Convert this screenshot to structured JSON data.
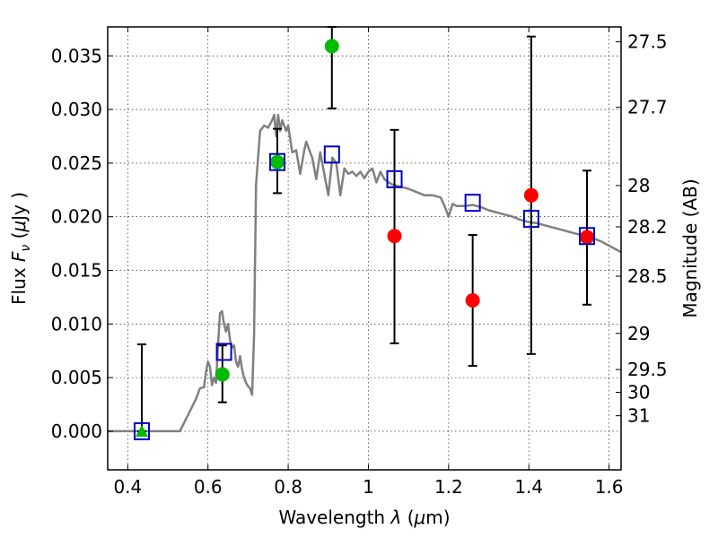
{
  "chart_data": {
    "type": "scatter",
    "xlabel_text": "Wavelength",
    "xlabel_symbol": "λ",
    "xlabel_unit_open": "(",
    "xlabel_unit_mu": "μ",
    "xlabel_unit_rest": "m)",
    "ylabel_text": "Flux",
    "ylabel_symbol": "F",
    "ylabel_subscript": "ν",
    "ylabel_unit_open": "(",
    "ylabel_unit_mu": "μ",
    "ylabel_unit_rest": "Jy )",
    "y2label": "Magnitude (AB)",
    "xlim": [
      0.35,
      1.63
    ],
    "ylim": [
      -0.0036,
      0.0377
    ],
    "grid": true,
    "x_ticks": [
      0.4,
      0.6,
      0.8,
      1.0,
      1.2,
      1.4,
      1.6
    ],
    "x_tick_labels": [
      "0.4",
      "0.6",
      "0.8",
      "1",
      "1.2",
      "1.4",
      "1.6"
    ],
    "y_ticks": [
      0.0,
      0.005,
      0.01,
      0.015,
      0.02,
      0.025,
      0.03,
      0.035
    ],
    "y_tick_labels": [
      "0.000",
      "0.005",
      "0.010",
      "0.015",
      "0.020",
      "0.025",
      "0.030",
      "0.035"
    ],
    "mag_ticks": [
      27.5,
      27.7,
      28,
      28.2,
      28.5,
      29,
      29.5,
      30,
      31
    ],
    "mag_tick_labels": [
      "27.5",
      "27.7",
      "28",
      "28.2",
      "28.5",
      "29",
      "29.5",
      "30",
      "31"
    ],
    "series": [
      {
        "marker": "circle",
        "color": "#00bb00",
        "points": [
          {
            "x": 0.636,
            "y": 0.0053,
            "err_low": 0.0027,
            "err_high": 0.008
          },
          {
            "x": 0.773,
            "y": 0.0251,
            "err_low": 0.0222,
            "err_high": 0.0282
          },
          {
            "x": 0.909,
            "y": 0.0359,
            "err_low": 0.0301,
            "err_high": 0.0377
          }
        ]
      },
      {
        "marker": "triangle",
        "color": "#00bb00",
        "points": [
          {
            "x": 0.435,
            "y": 0.0,
            "err_low": 0.0,
            "err_high": 0.0081
          }
        ]
      },
      {
        "marker": "circle",
        "color": "#ff0000",
        "points": [
          {
            "x": 1.065,
            "y": 0.0182,
            "err_low": 0.0082,
            "err_high": 0.0281
          },
          {
            "x": 1.26,
            "y": 0.0122,
            "err_low": 0.0061,
            "err_high": 0.0183
          },
          {
            "x": 1.406,
            "y": 0.022,
            "err_low": 0.0072,
            "err_high": 0.0368
          },
          {
            "x": 1.545,
            "y": 0.0181,
            "err_low": 0.0118,
            "err_high": 0.0243
          }
        ]
      },
      {
        "marker": "square-open",
        "color": "#0000cc",
        "points": [
          {
            "x": 0.435,
            "y": 0.0
          },
          {
            "x": 0.64,
            "y": 0.0074
          },
          {
            "x": 0.773,
            "y": 0.0251
          },
          {
            "x": 0.909,
            "y": 0.0258
          },
          {
            "x": 1.065,
            "y": 0.0235
          },
          {
            "x": 1.26,
            "y": 0.0213
          },
          {
            "x": 1.406,
            "y": 0.0198
          },
          {
            "x": 1.545,
            "y": 0.0182
          }
        ]
      },
      {
        "type": "line",
        "color": "#808080",
        "x": [
          0.35,
          0.53,
          0.55,
          0.57,
          0.58,
          0.59,
          0.595,
          0.6,
          0.605,
          0.61,
          0.615,
          0.62,
          0.625,
          0.63,
          0.635,
          0.64,
          0.645,
          0.65,
          0.655,
          0.66,
          0.665,
          0.67,
          0.675,
          0.68,
          0.685,
          0.69,
          0.695,
          0.7,
          0.705,
          0.71,
          0.715,
          0.72,
          0.73,
          0.74,
          0.75,
          0.76,
          0.765,
          0.77,
          0.775,
          0.78,
          0.785,
          0.79,
          0.795,
          0.8,
          0.81,
          0.82,
          0.83,
          0.84,
          0.845,
          0.85,
          0.86,
          0.87,
          0.88,
          0.89,
          0.9,
          0.91,
          0.92,
          0.93,
          0.94,
          0.95,
          0.96,
          0.97,
          0.98,
          0.99,
          1.0,
          1.01,
          1.02,
          1.03,
          1.04,
          1.05,
          1.06,
          1.08,
          1.1,
          1.12,
          1.14,
          1.16,
          1.18,
          1.19,
          1.2,
          1.21,
          1.22,
          1.24,
          1.26,
          1.28,
          1.3,
          1.32,
          1.34,
          1.36,
          1.38,
          1.4,
          1.42,
          1.44,
          1.46,
          1.48,
          1.5,
          1.52,
          1.54,
          1.56,
          1.58,
          1.6,
          1.63
        ],
        "y": [
          0.0,
          0.0,
          0.0015,
          0.003,
          0.004,
          0.0041,
          0.0055,
          0.0065,
          0.006,
          0.0043,
          0.005,
          0.0045,
          0.008,
          0.011,
          0.0112,
          0.01,
          0.0093,
          0.01,
          0.0085,
          0.0078,
          0.008,
          0.0065,
          0.006,
          0.007,
          0.0058,
          0.005,
          0.0045,
          0.0042,
          0.004,
          0.0034,
          0.009,
          0.023,
          0.028,
          0.0285,
          0.0283,
          0.029,
          0.0295,
          0.0275,
          0.0295,
          0.028,
          0.029,
          0.0285,
          0.028,
          0.0285,
          0.026,
          0.0262,
          0.024,
          0.0262,
          0.027,
          0.0265,
          0.0255,
          0.0235,
          0.026,
          0.024,
          0.022,
          0.0255,
          0.025,
          0.022,
          0.0245,
          0.024,
          0.0242,
          0.0238,
          0.0242,
          0.0236,
          0.0242,
          0.0245,
          0.0232,
          0.0242,
          0.0235,
          0.0232,
          0.023,
          0.0228,
          0.0226,
          0.0223,
          0.022,
          0.022,
          0.0218,
          0.021,
          0.02,
          0.0212,
          0.021,
          0.021,
          0.0211,
          0.0209,
          0.0206,
          0.0204,
          0.0202,
          0.02,
          0.0197,
          0.0195,
          0.0194,
          0.0192,
          0.019,
          0.0188,
          0.0186,
          0.0184,
          0.0182,
          0.018,
          0.0177,
          0.0173,
          0.0167
        ]
      }
    ]
  }
}
